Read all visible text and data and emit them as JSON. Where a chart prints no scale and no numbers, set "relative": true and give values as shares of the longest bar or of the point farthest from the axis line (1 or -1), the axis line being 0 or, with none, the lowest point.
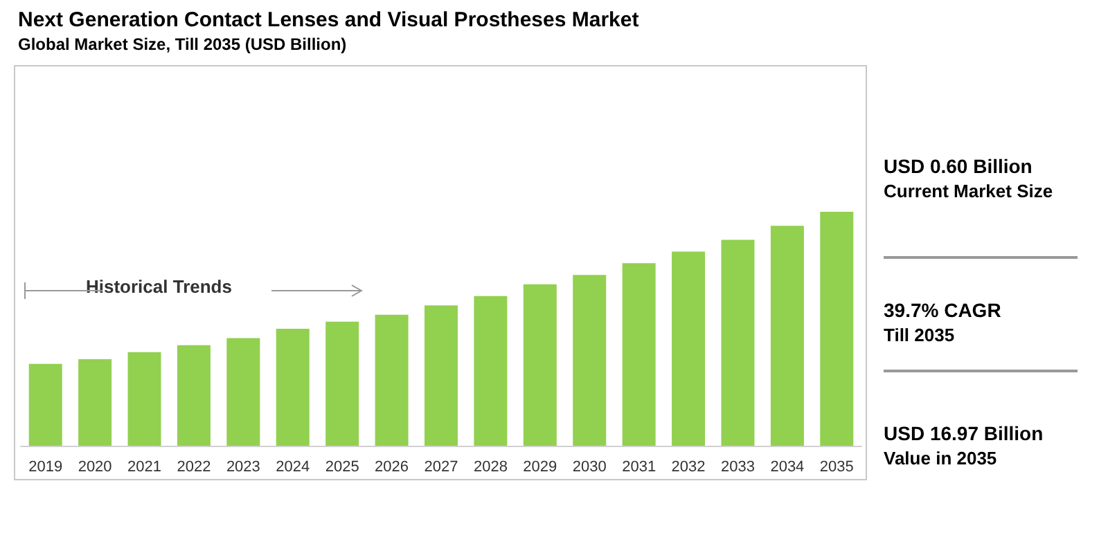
{
  "chart_data": {
    "type": "bar",
    "title": "Next Generation Contact Lenses and Visual Prostheses Market",
    "subtitle": "Global Market Size, Till 2035 (USD Billion)",
    "categories": [
      "2019",
      "2020",
      "2021",
      "2022",
      "2023",
      "2024",
      "2025",
      "2026",
      "2027",
      "2028",
      "2029",
      "2030",
      "2031",
      "2032",
      "2033",
      "2034",
      "2035"
    ],
    "values": [
      0.35,
      0.37,
      0.4,
      0.43,
      0.46,
      0.5,
      0.53,
      0.56,
      0.6,
      0.64,
      0.69,
      0.73,
      0.78,
      0.83,
      0.88,
      0.94,
      1
    ],
    "color": "#92d050",
    "relative": true,
    "grid": false,
    "annotations": [
      "Historical Trends",
      "USD 0.60 Billion",
      "Current Market Size",
      "39.7% CAGR",
      "Till 2035",
      "USD 16.97 Billion",
      "Value in 2035"
    ]
  }
}
